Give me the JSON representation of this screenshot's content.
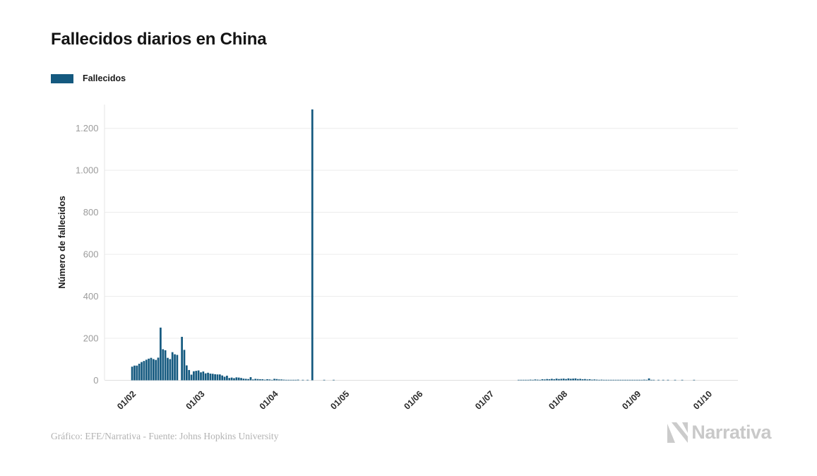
{
  "header": {
    "title": "Fallecidos diarios en China"
  },
  "legend": {
    "items": [
      {
        "label": "Fallecidos",
        "color": "#14597f"
      }
    ]
  },
  "chart_data": {
    "type": "bar",
    "title": "Fallecidos diarios en China",
    "xlabel": "",
    "ylabel": "Número de fallecidos",
    "bar_color": "#14597f",
    "grid": true,
    "legend_position": "top-left",
    "ylim": [
      0,
      1300
    ],
    "y_ticks": [
      "0",
      "200",
      "400",
      "600",
      "800",
      "1.000",
      "1.200"
    ],
    "y_tick_values": [
      0,
      200,
      400,
      600,
      800,
      1000,
      1200
    ],
    "x_ticks": [
      "01/02",
      "01/03",
      "01/04",
      "01/05",
      "01/06",
      "01/07",
      "01/08",
      "01/09",
      "01/10"
    ],
    "axis_start": "21/01/2020",
    "series": [
      {
        "name": "Fallecidos",
        "start_date": "01/02/2020",
        "peak_note": "17/04: 1.290",
        "values": [
          65,
          70,
          70,
          79,
          87,
          92,
          98,
          103,
          107,
          101,
          97,
          108,
          251,
          148,
          143,
          107,
          101,
          134,
          124,
          121,
          0,
          207,
          145,
          71,
          49,
          27,
          43,
          45,
          47,
          38,
          42,
          33,
          36,
          32,
          31,
          29,
          28,
          28,
          23,
          17,
          22,
          11,
          13,
          10,
          14,
          13,
          11,
          8,
          7,
          6,
          15,
          4,
          7,
          6,
          5,
          5,
          3,
          5,
          4,
          2,
          7,
          6,
          4,
          4,
          3,
          2,
          1,
          2,
          2,
          1,
          3,
          0,
          2,
          0,
          1,
          0,
          1290,
          0,
          0,
          0,
          0,
          1,
          0,
          0,
          0,
          1,
          0,
          0,
          0,
          0,
          0,
          0,
          0,
          0,
          0,
          0,
          0,
          0,
          0,
          0,
          0,
          0,
          0,
          0,
          0,
          0,
          0,
          0,
          0,
          0,
          0,
          0,
          0,
          0,
          0,
          0,
          0,
          0,
          0,
          0,
          0,
          0,
          0,
          0,
          0,
          0,
          0,
          0,
          0,
          0,
          0,
          0,
          0,
          0,
          0,
          0,
          0,
          0,
          0,
          0,
          0,
          0,
          0,
          0,
          0,
          0,
          0,
          0,
          0,
          0,
          0,
          0,
          0,
          0,
          0,
          0,
          0,
          0,
          0,
          0,
          0,
          0,
          0,
          2,
          1,
          2,
          1,
          2,
          3,
          2,
          4,
          3,
          2,
          5,
          4,
          6,
          5,
          7,
          5,
          8,
          6,
          7,
          8,
          6,
          9,
          7,
          8,
          9,
          6,
          7,
          5,
          6,
          4,
          5,
          3,
          4,
          3,
          2,
          3,
          2,
          1,
          2,
          1,
          2,
          1,
          1,
          2,
          1,
          1,
          1,
          1,
          1,
          1,
          1,
          2,
          1,
          3,
          2,
          9,
          1,
          1,
          0,
          1,
          0,
          1,
          0,
          1,
          0,
          0,
          1,
          0,
          0,
          1,
          0,
          0,
          0,
          0,
          1,
          0,
          0,
          0,
          0,
          0
        ]
      }
    ]
  },
  "footer": {
    "credit": "Gráfico: EFE/Narrativa - Fuente: Johns Hopkins University",
    "brand": "Narrativa"
  }
}
